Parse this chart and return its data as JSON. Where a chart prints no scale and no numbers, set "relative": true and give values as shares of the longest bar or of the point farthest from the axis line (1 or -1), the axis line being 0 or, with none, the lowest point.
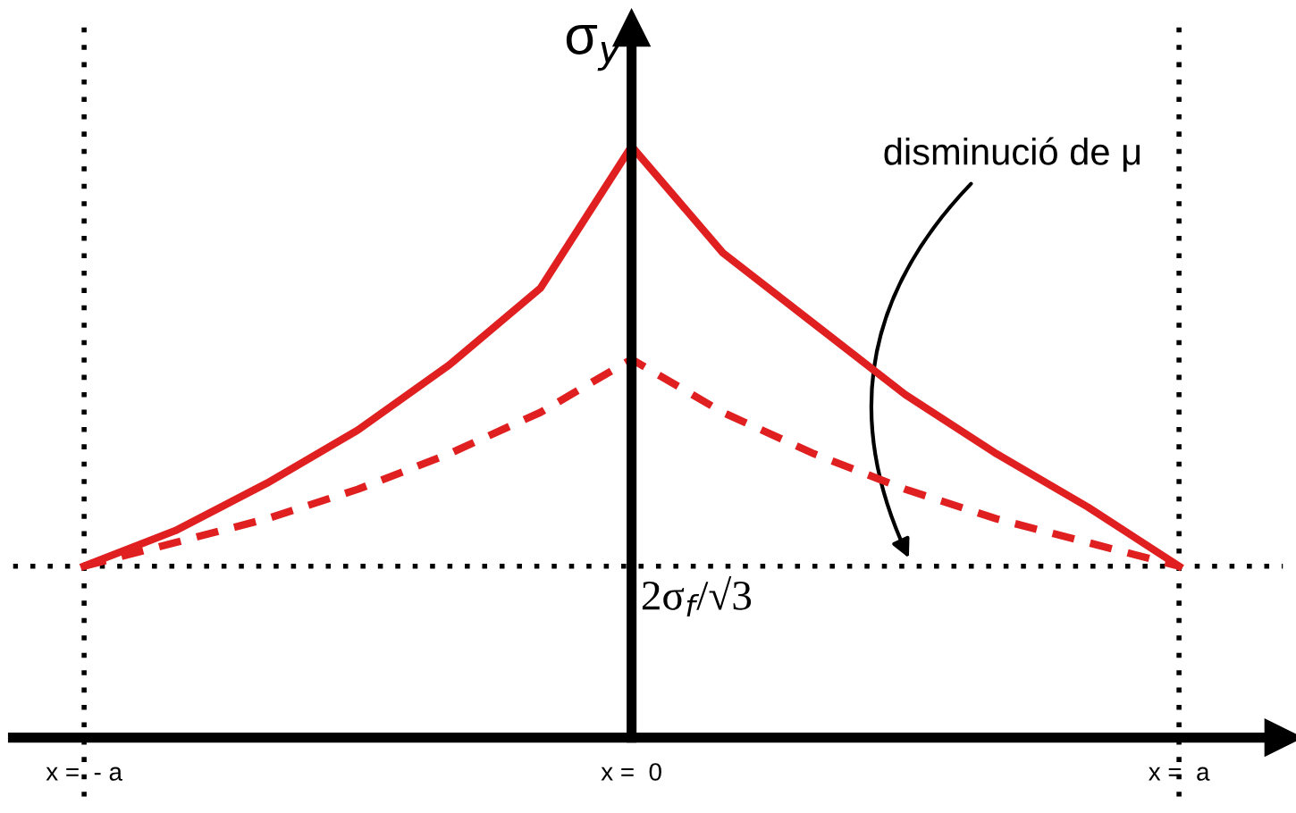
{
  "chart_data": {
    "type": "line",
    "relative": true,
    "ylabel": "σ$_{y}$",
    "categories": [
      "x =  - a",
      null,
      null,
      null,
      null,
      null,
      "x =  0",
      null,
      null,
      null,
      null,
      null,
      "x =  a"
    ],
    "grid": false,
    "series": [
      {
        "color": "#e02020",
        "line_style": "solid",
        "values": [
          0.29,
          0.35,
          0.43,
          0.52,
          0.63,
          0.76,
          1,
          0.82,
          0.7,
          0.58,
          0.48,
          0.39,
          0.29
        ]
      },
      {
        "color": "#e02020",
        "line_style": "dashed",
        "values": [
          0.29,
          0.33,
          0.37,
          0.42,
          0.48,
          0.55,
          0.64,
          0.55,
          0.48,
          0.42,
          0.37,
          0.33,
          0.29
        ]
      }
    ],
    "ref_lines": [
      {
        "axis": "y",
        "value": 0.29,
        "label": "2σ$_{f}$/√3",
        "line_style": "dotted",
        "color": "#000000"
      },
      {
        "axis": "x",
        "value": "x =  - a",
        "line_style": "dotted",
        "color": "#000000"
      },
      {
        "axis": "x",
        "value": "x =  a",
        "line_style": "dotted",
        "color": "#000000"
      }
    ],
    "annotations": [
      "disminució de μ"
    ]
  }
}
